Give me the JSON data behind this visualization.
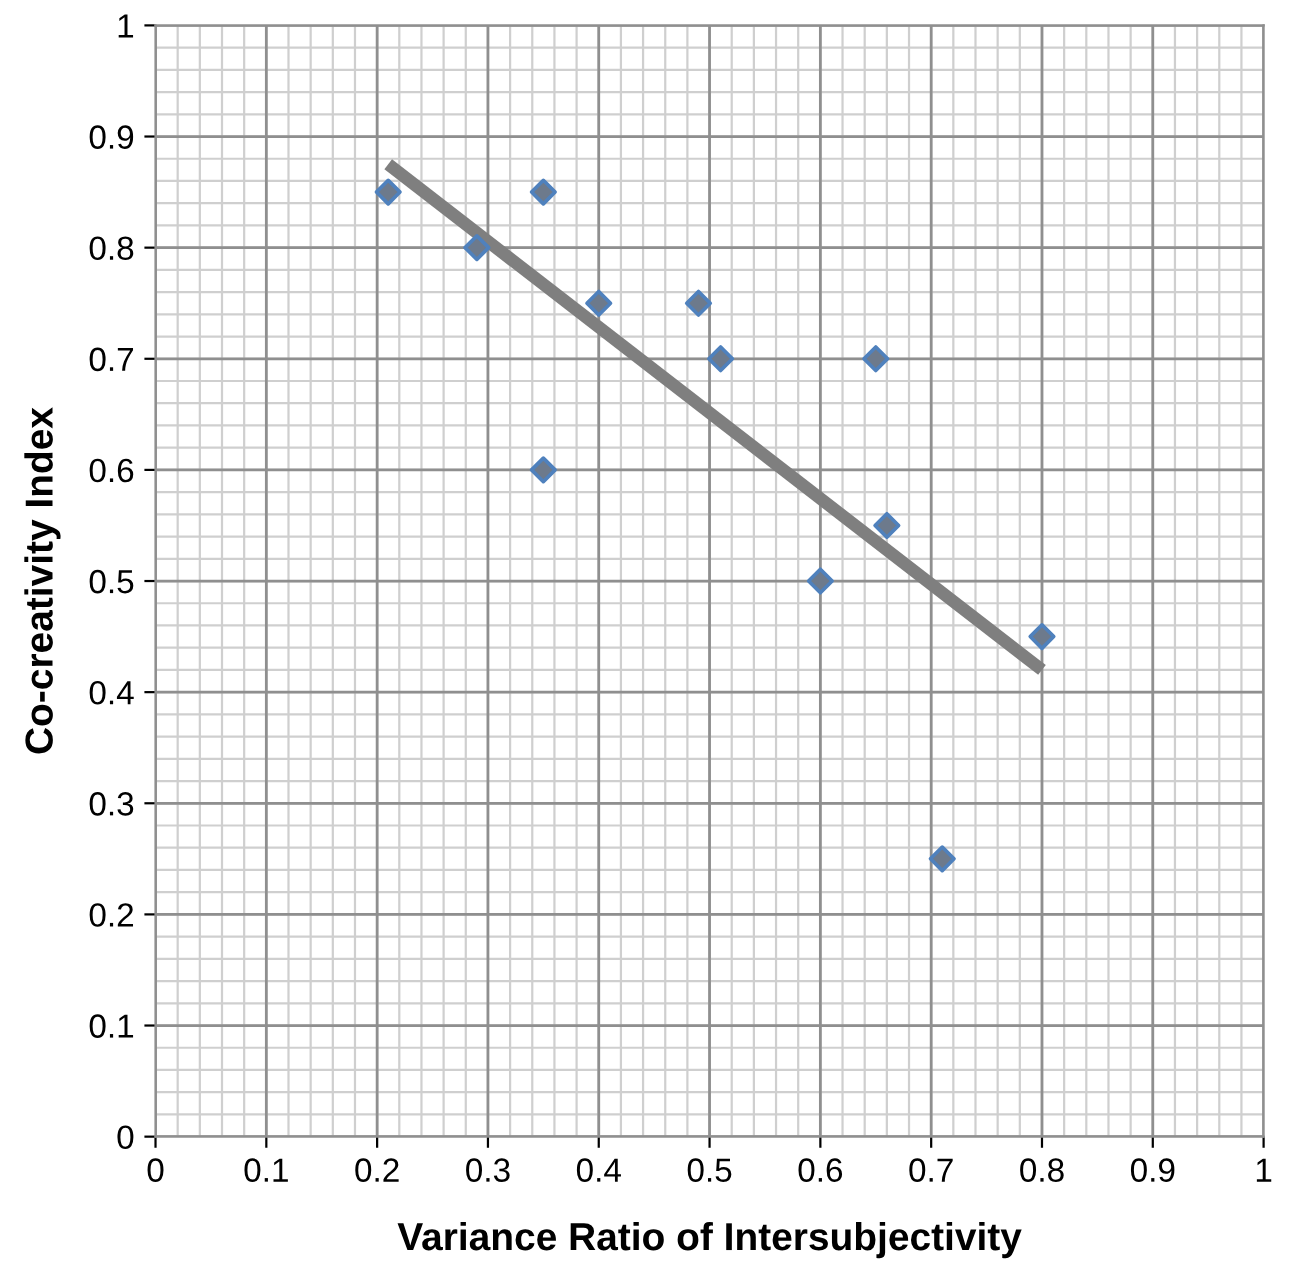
{
  "chart_data": {
    "type": "scatter",
    "xlabel": "Variance Ratio of Intersubjectivity",
    "ylabel": "Co-creativity Index",
    "series": [
      {
        "color": "#4f81bd",
        "marker": "diamond",
        "x": [
          0.21,
          0.29,
          0.35,
          0.35,
          0.4,
          0.49,
          0.51,
          0.6,
          0.65,
          0.66,
          0.71,
          0.8
        ],
        "values": [
          0.85,
          0.8,
          0.85,
          0.6,
          0.75,
          0.75,
          0.7,
          0.5,
          0.7,
          0.55,
          0.25,
          0.45
        ]
      },
      {
        "type": "line",
        "color": "#7f7f7f",
        "marker": "none",
        "x": [
          0.21,
          0.8
        ],
        "values": [
          0.875,
          0.42
        ]
      }
    ],
    "xlim": [
      0,
      1
    ],
    "ylim": [
      0,
      1
    ],
    "xticks": [
      0,
      0.1,
      0.2,
      0.3,
      0.4,
      0.5,
      0.6,
      0.7,
      0.8,
      0.9,
      1
    ],
    "yticks": [
      0,
      0.1,
      0.2,
      0.3,
      0.4,
      0.5,
      0.6,
      0.7,
      0.8,
      0.9,
      1
    ],
    "grid": true
  }
}
